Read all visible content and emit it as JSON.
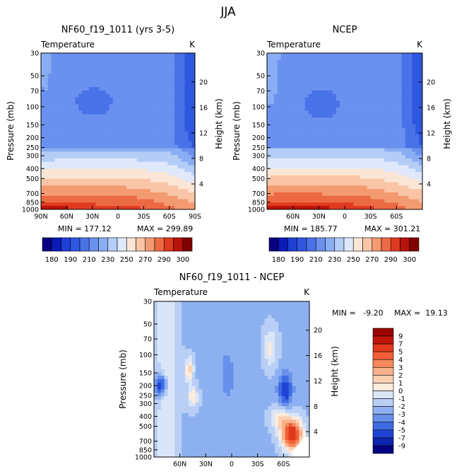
{
  "page_title": "JJA",
  "chart_data": [
    {
      "id": "model",
      "type": "heatmap",
      "title": "NF60_f19_1011 (yrs 3-5)",
      "subtitle_left": "Temperature",
      "subtitle_right": "K",
      "xlabel": "",
      "ylabel": "Pressure (mb)",
      "y2label": "Height (km)",
      "x_ticks": [
        "90N",
        "60N",
        "30N",
        "0",
        "30S",
        "60S",
        "90S"
      ],
      "x_range": [
        90,
        -90
      ],
      "y_ticks": [
        "30",
        "50",
        "70",
        "100",
        "150",
        "200",
        "250",
        "300",
        "400",
        "500",
        "700",
        "850",
        "1000"
      ],
      "y_range": [
        30,
        1000
      ],
      "y2_ticks": [
        "20",
        "16",
        "12",
        "8",
        "4"
      ],
      "stats": {
        "min": "MIN = 177.12",
        "max": "MAX = 299.89"
      },
      "colorbar": {
        "labels": [
          "180",
          "190",
          "210",
          "230",
          "250",
          "270",
          "290",
          "300"
        ],
        "levels": [
          180,
          185,
          190,
          200,
          210,
          220,
          230,
          240,
          250,
          260,
          270,
          280,
          290,
          295,
          300
        ]
      }
    },
    {
      "id": "ncep",
      "type": "heatmap",
      "title": "NCEP",
      "subtitle_left": "Temperature",
      "subtitle_right": "K",
      "xlabel": "",
      "ylabel": "Pressure (mb)",
      "y2label": "Height (km)",
      "x_ticks": [
        "60N",
        "30N",
        "0",
        "30S",
        "60S"
      ],
      "x_range": [
        90,
        -90
      ],
      "y_ticks": [
        "30",
        "50",
        "70",
        "100",
        "150",
        "200",
        "250",
        "300",
        "400",
        "500",
        "700",
        "850",
        "1000"
      ],
      "y_range": [
        30,
        1000
      ],
      "y2_ticks": [
        "20",
        "16",
        "12",
        "8",
        "4"
      ],
      "stats": {
        "min": "MIN = 185.77",
        "max": "MAX = 301.21"
      },
      "colorbar": {
        "labels": [
          "180",
          "190",
          "210",
          "230",
          "250",
          "270",
          "290",
          "300"
        ],
        "levels": [
          180,
          185,
          190,
          200,
          210,
          220,
          230,
          240,
          250,
          260,
          270,
          280,
          290,
          295,
          300
        ]
      }
    },
    {
      "id": "diff",
      "type": "heatmap",
      "title": "NF60_f19_1011 - NCEP",
      "subtitle_left": "Temperature",
      "subtitle_right": "K",
      "xlabel": "",
      "ylabel": "Pressure (mb)",
      "y2label": "Height (km)",
      "x_ticks": [
        "60N",
        "30N",
        "0",
        "30S",
        "60S"
      ],
      "x_range": [
        90,
        -90
      ],
      "y_ticks": [
        "30",
        "50",
        "70",
        "100",
        "150",
        "200",
        "250",
        "300",
        "400",
        "500",
        "700",
        "850",
        "1000"
      ],
      "y_range": [
        30,
        1000
      ],
      "y2_ticks": [
        "20",
        "16",
        "12",
        "8",
        "4"
      ],
      "stats": {
        "min": "MIN =   -9.20",
        "max": "MAX =  19.13"
      },
      "colorbar": {
        "labels": [
          "9",
          "7",
          "5",
          "4",
          "3",
          "2",
          "1",
          "0",
          "-1",
          "-2",
          "-3",
          "-4",
          "-5",
          "-7",
          "-9"
        ]
      }
    }
  ],
  "palettes": {
    "abs": [
      "#08007f",
      "#0a19b8",
      "#1d3fd6",
      "#2f57e0",
      "#4a72e8",
      "#6a91ef",
      "#8aaef3",
      "#b4cdf7",
      "#dfe9fb",
      "#fbe6d6",
      "#f9c5a6",
      "#f49a71",
      "#ec6a43",
      "#de3a1f",
      "#b8120a",
      "#800000"
    ],
    "diff": [
      "#990000",
      "#c0150a",
      "#e0391c",
      "#f25f34",
      "#f7875c",
      "#fab08a",
      "#fcd0b3",
      "#fdebdc",
      "#dae6f8",
      "#b9cff5",
      "#8db1f0",
      "#6690ea",
      "#3d6be3",
      "#1f44d5",
      "#0d24ad",
      "#000080"
    ]
  }
}
